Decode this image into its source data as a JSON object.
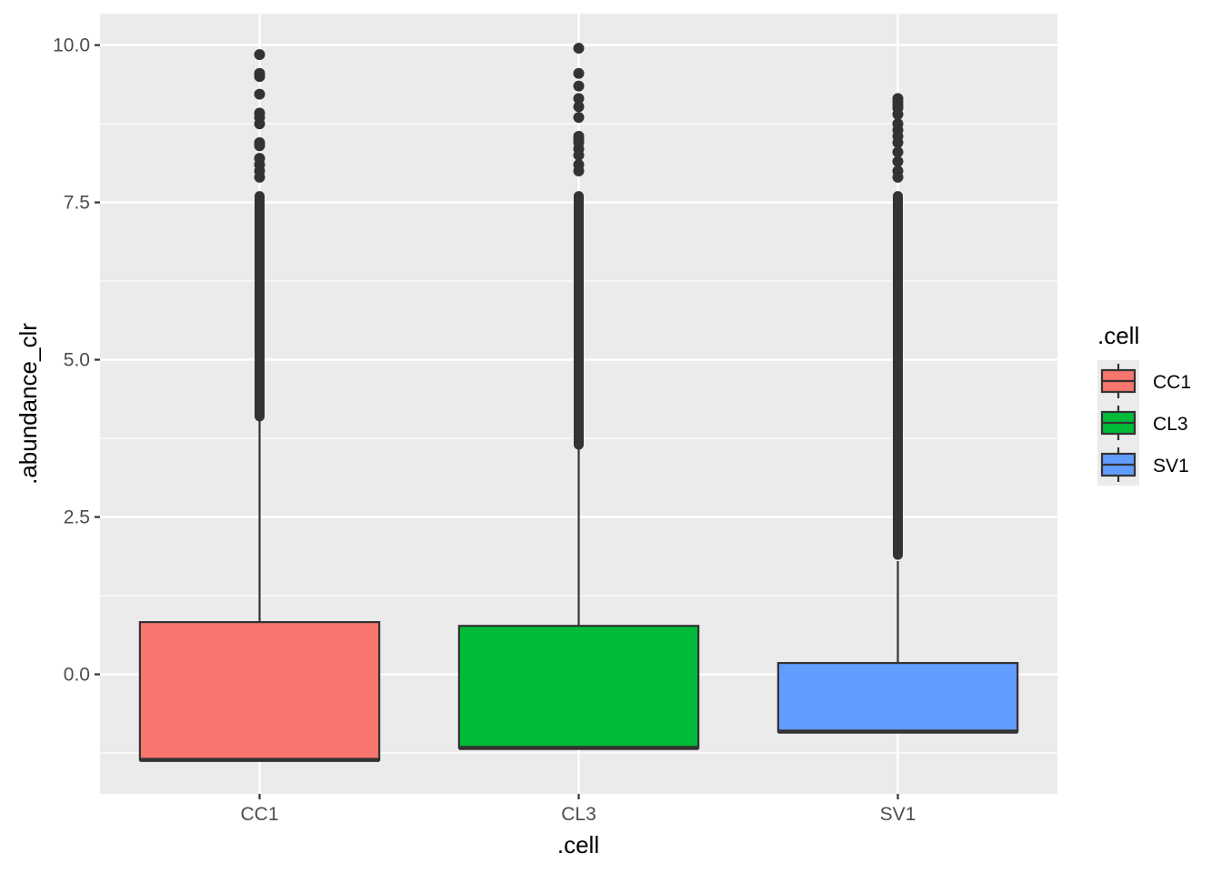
{
  "chart_data": {
    "type": "box",
    "title": "",
    "xlabel": ".cell",
    "ylabel": ".abundance_clr",
    "ylim": [
      -1.9,
      10.5
    ],
    "y_ticks": [
      0.0,
      2.5,
      5.0,
      7.5,
      10.0
    ],
    "y_tick_labels": [
      "0.0",
      "2.5",
      "5.0",
      "7.5",
      "10.0"
    ],
    "categories": [
      "CC1",
      "CL3",
      "SV1"
    ],
    "grid": true,
    "legend": {
      "title": ".cell",
      "placement": "right",
      "entries": [
        "CC1",
        "CL3",
        "SV1"
      ]
    },
    "colors": {
      "CC1": "#F8766D",
      "CL3": "#00BA38",
      "SV1": "#619CFF",
      "panel": "#EBEBEB",
      "grid": "#FFFFFF",
      "outline": "#333333"
    },
    "boxes": [
      {
        "category": "CC1",
        "q1": -1.36,
        "median": -1.36,
        "q3": 0.83,
        "whisker_low": -1.36,
        "whisker_high": 4.1,
        "outliers_low": 4.1,
        "outliers_high": 9.85
      },
      {
        "category": "CL3",
        "q1": -1.17,
        "median": -1.17,
        "q3": 0.77,
        "whisker_low": -1.17,
        "whisker_high": 3.65,
        "outliers_low": 3.65,
        "outliers_high": 9.95
      },
      {
        "category": "SV1",
        "q1": -0.91,
        "median": -0.91,
        "q3": 0.18,
        "whisker_low": -0.91,
        "whisker_high": 1.8,
        "outliers_low": 1.9,
        "outliers_high": 9.15
      }
    ],
    "outlier_points": {
      "CC1": [
        9.85,
        9.55,
        9.5,
        9.22,
        8.92,
        8.85,
        8.75,
        8.45,
        8.4,
        8.2,
        8.1,
        8.0,
        7.9
      ],
      "CL3": [
        9.95,
        9.55,
        9.35,
        9.15,
        9.02,
        8.85,
        8.55,
        8.5,
        8.45,
        8.35,
        8.25,
        8.1,
        8.0
      ],
      "SV1": [
        9.15,
        9.1,
        9.05,
        9.0,
        8.9,
        8.75,
        8.65,
        8.55,
        8.45,
        8.3,
        8.15,
        8.0,
        7.9
      ]
    }
  }
}
